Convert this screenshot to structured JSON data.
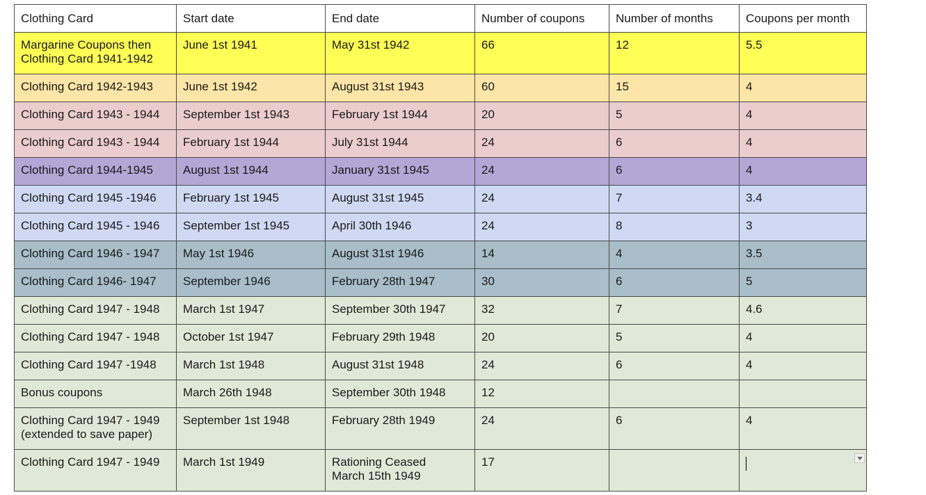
{
  "colors": {
    "yellow": "#ffff55",
    "orange": "#fce5a6",
    "pink": "#ebcdcc",
    "purple": "#b4a7d6",
    "lightblue": "#cfd9f3",
    "steel": "#a9bec8",
    "green": "#e0e9d7"
  },
  "header": [
    "Clothing Card",
    "Start date",
    "End date",
    "Number of coupons",
    "Number of months",
    "Coupons per month"
  ],
  "rows": [
    {
      "color": "yellow",
      "cells": [
        "Margarine Coupons then\nClothing Card 1941-1942",
        "June 1st 1941",
        "May 31st 1942",
        "66",
        "12",
        "5.5"
      ]
    },
    {
      "color": "orange",
      "cells": [
        "Clothing Card 1942-1943",
        "June 1st 1942",
        "August 31st 1943",
        "60",
        "15",
        "4"
      ]
    },
    {
      "color": "pink",
      "cells": [
        "Clothing Card 1943 - 1944",
        "September 1st 1943",
        "February 1st 1944",
        "20",
        "5",
        "4"
      ]
    },
    {
      "color": "pink",
      "cells": [
        "Clothing Card 1943 - 1944",
        "February 1st 1944",
        "July 31st 1944",
        "24",
        "6",
        "4"
      ]
    },
    {
      "color": "purple",
      "cells": [
        "Clothing Card 1944-1945",
        "August 1st 1944",
        "January 31st 1945",
        "24",
        "6",
        "4"
      ]
    },
    {
      "color": "lightblue",
      "cells": [
        "Clothing Card 1945 -1946",
        "February 1st 1945",
        "August 31st 1945",
        "24",
        "7",
        "3.4"
      ]
    },
    {
      "color": "lightblue",
      "cells": [
        "Clothing Card 1945 - 1946",
        "September 1st 1945",
        "April 30th 1946",
        "24",
        "8",
        "3"
      ]
    },
    {
      "color": "steel",
      "cells": [
        "Clothing Card 1946 - 1947",
        "May 1st 1946",
        "August 31st 1946",
        "14",
        "4",
        "3.5"
      ]
    },
    {
      "color": "steel",
      "cells": [
        "Clothing Card 1946- 1947",
        "September 1946",
        "February 28th 1947",
        "30",
        "6",
        "5"
      ]
    },
    {
      "color": "green",
      "cells": [
        "Clothing Card 1947 - 1948",
        "March 1st 1947",
        "September 30th 1947",
        "32",
        "7",
        "4.6"
      ]
    },
    {
      "color": "green",
      "cells": [
        "Clothing Card 1947 - 1948",
        "October 1st 1947",
        "February 29th 1948",
        "20",
        "5",
        "4"
      ]
    },
    {
      "color": "green",
      "cells": [
        "Clothing Card 1947 -1948",
        "March 1st 1948",
        "August 31st 1948",
        "24",
        "6",
        "4"
      ]
    },
    {
      "color": "green",
      "cells": [
        "Bonus coupons",
        "March 26th 1948",
        "September 30th 1948",
        "12",
        "",
        ""
      ]
    },
    {
      "color": "green",
      "cells": [
        "Clothing Card 1947 - 1949\n(extended to save paper)",
        "September 1st 1948",
        "February 28th 1949",
        "24",
        "6",
        "4"
      ]
    },
    {
      "color": "green",
      "cells": [
        "Clothing Card 1947 - 1949",
        "March 1st 1949",
        "Rationing Ceased\nMarch 15th 1949",
        "17",
        "",
        ""
      ]
    }
  ]
}
